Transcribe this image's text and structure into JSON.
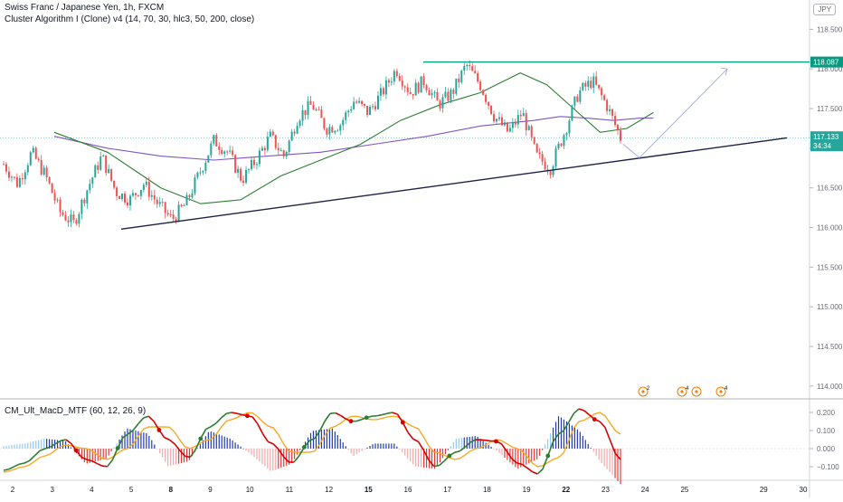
{
  "header": {
    "title": "Swiss Franc / Japanese Yen, 1h, FXCM",
    "indicator": "Cluster Algorithm I (Clone) v4 (14, 70, 30, hlc3, 50, 200, close)",
    "currency_badge": "JPY"
  },
  "colors": {
    "up": "#26a69a",
    "down": "#ef5350",
    "ma_fast": "#2e7d32",
    "ma_slow": "#7e57c2",
    "resistance": "#089981",
    "trendline": "#1e2046",
    "projection": "#9fa8da",
    "price_badge": "#26a69a",
    "resistance_badge": "#089981",
    "macd_main": "#2e7d32",
    "macd_down": "#d50000",
    "macd_signal": "#f9a825",
    "hist_pos": "#1e3bb3",
    "hist_pos_light": "#90caf9",
    "hist_neg": "#e53935",
    "hist_neg_light": "#f6a6a6",
    "event": "#f57c00"
  },
  "chart_data": [
    {
      "type": "candlestick",
      "name": "main-price-chart",
      "x_ticks": [
        "2",
        "3",
        "4",
        "5",
        "8",
        "9",
        "10",
        "11",
        "12",
        "15",
        "16",
        "17",
        "18",
        "19",
        "22",
        "23",
        "24",
        "25",
        "29",
        "30"
      ],
      "bar_span": [
        1,
        28
      ],
      "ylim": [
        113.85,
        118.55
      ],
      "y_ticks": [
        "114.000",
        "114.500",
        "115.000",
        "115.500",
        "116.000",
        "116.500",
        "117.000",
        "117.500",
        "118.000",
        "118.500"
      ],
      "closes": [
        116.8,
        116.55,
        116.95,
        116.65,
        116.2,
        116.05,
        116.5,
        116.9,
        116.45,
        116.35,
        116.55,
        116.3,
        116.1,
        116.3,
        116.7,
        117.1,
        116.95,
        116.6,
        116.85,
        117.15,
        116.9,
        117.4,
        117.55,
        117.25,
        117.3,
        117.6,
        117.45,
        117.7,
        118.0,
        117.7,
        117.85,
        117.55,
        117.7,
        118.05,
        117.8,
        117.4,
        117.2,
        117.45,
        116.9,
        116.75,
        117.2,
        117.7,
        117.85,
        117.55,
        117.133
      ],
      "resistance": {
        "level": 118.087,
        "label": "118.087"
      },
      "current_price": {
        "value": 117.133,
        "label": "117.133",
        "countdown": "34:34"
      },
      "trendline": [
        [
          4.75,
          115.98
        ],
        [
          28.6,
          117.13
        ]
      ],
      "projection": [
        [
          28.0,
          117.05
        ],
        [
          28.7,
          116.88
        ],
        [
          30.5,
          118.0
        ]
      ],
      "ma_fast_points": [
        [
          1,
          117.2
        ],
        [
          3,
          116.95
        ],
        [
          5,
          116.5
        ],
        [
          6.5,
          116.3
        ],
        [
          8,
          116.35
        ],
        [
          9.5,
          116.65
        ],
        [
          11,
          116.85
        ],
        [
          12.5,
          117.05
        ],
        [
          14,
          117.35
        ],
        [
          15.5,
          117.55
        ],
        [
          17,
          117.7
        ],
        [
          18.5,
          117.95
        ],
        [
          19.5,
          117.8
        ],
        [
          20.5,
          117.5
        ],
        [
          21.5,
          117.2
        ],
        [
          22.5,
          117.25
        ],
        [
          23.5,
          117.45
        ]
      ],
      "ma_slow_points": [
        [
          1,
          117.15
        ],
        [
          3,
          117.0
        ],
        [
          5,
          116.9
        ],
        [
          7,
          116.85
        ],
        [
          9,
          116.9
        ],
        [
          11,
          116.95
        ],
        [
          13,
          117.05
        ],
        [
          15,
          117.15
        ],
        [
          17,
          117.28
        ],
        [
          19,
          117.35
        ],
        [
          20,
          117.4
        ],
        [
          21,
          117.38
        ],
        [
          22,
          117.35
        ],
        [
          23,
          117.38
        ],
        [
          23.5,
          117.38
        ]
      ],
      "events": [
        {
          "x": 24,
          "label": "2"
        },
        {
          "x": 25,
          "label": "4"
        },
        {
          "x": 25.6,
          "label": ""
        },
        {
          "x": 26.3,
          "label": "4"
        }
      ]
    },
    {
      "type": "line",
      "name": "macd-oscillator",
      "title": "CM_Ult_MacD_MTF (60, 12, 26, 9)",
      "ylim": [
        -0.17,
        0.27
      ],
      "y_ticks": [
        "0.200",
        "0.100",
        "0.000",
        "−0.100"
      ],
      "series": [
        {
          "values": [
            -0.12,
            -0.08,
            0.0,
            0.05,
            -0.06,
            -0.1,
            0.08,
            0.18,
            0.05,
            -0.05,
            0.12,
            0.2,
            0.18,
            0.03,
            -0.08,
            0.05,
            0.2,
            0.15,
            0.18,
            0.2,
            0.05,
            -0.1,
            -0.02,
            0.05,
            0.04,
            -0.08,
            -0.14,
            0.08,
            0.22,
            0.15,
            -0.06
          ]
        },
        {
          "values": [
            -0.13,
            -0.1,
            -0.04,
            0.02,
            0.0,
            -0.06,
            0.0,
            0.12,
            0.12,
            0.0,
            0.05,
            0.16,
            0.2,
            0.12,
            -0.02,
            -0.02,
            0.12,
            0.18,
            0.16,
            0.18,
            0.12,
            -0.02,
            -0.06,
            0.0,
            0.05,
            0.0,
            -0.1,
            -0.05,
            0.15,
            0.2,
            0.08
          ]
        }
      ]
    }
  ]
}
